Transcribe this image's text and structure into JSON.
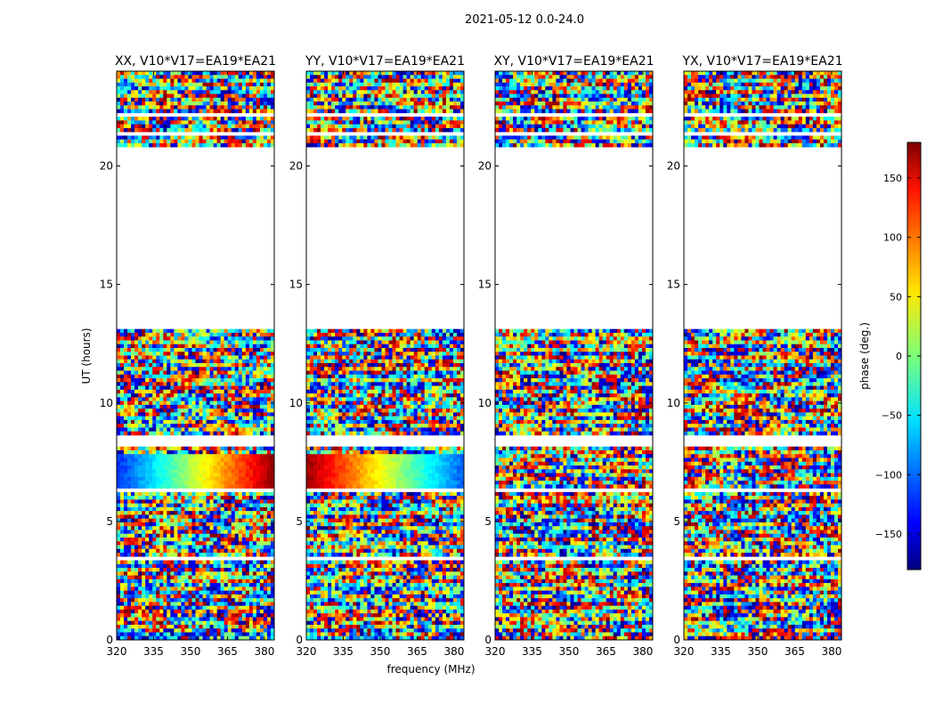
{
  "chart_data": {
    "type": "heatmap",
    "suptitle": "2021-05-12 0.0-24.0",
    "xlabel": "frequency (MHz)",
    "ylabel": "UT (hours)",
    "xlim": [
      320,
      384
    ],
    "ylim": [
      0,
      24
    ],
    "x_ticks": [
      320,
      335,
      350,
      365,
      380
    ],
    "y_ticks": [
      0,
      5,
      10,
      15,
      20
    ],
    "panels": [
      {
        "title": "XX, V10*V17=EA19*EA21",
        "coherent_band": {
          "ut": [
            6.4,
            7.8
          ],
          "phase_start": -120,
          "phase_end": 170
        }
      },
      {
        "title": "YY, V10*V17=EA19*EA21",
        "coherent_band": {
          "ut": [
            6.4,
            7.8
          ],
          "phase_start": 170,
          "phase_end": -100
        }
      },
      {
        "title": "XY, V10*V17=EA19*EA21",
        "coherent_band": null
      },
      {
        "title": "YX, V10*V17=EA19*EA21",
        "coherent_band": null
      }
    ],
    "data_gaps_ut": [
      [
        13.1,
        20.8
      ],
      [
        8.1,
        8.6
      ],
      [
        6.2,
        6.4
      ],
      [
        3.4,
        3.6
      ],
      [
        21.3,
        21.5
      ],
      [
        22.1,
        22.3
      ]
    ],
    "colorbar": {
      "label": "phase (deg.)",
      "range": [
        -180,
        180
      ],
      "ticks": [
        -150,
        -100,
        -50,
        0,
        50,
        100,
        150
      ],
      "tick_labels": [
        "−150",
        "−100",
        "−50",
        "0",
        "50",
        "100",
        "150"
      ],
      "colormap": "jet"
    }
  }
}
